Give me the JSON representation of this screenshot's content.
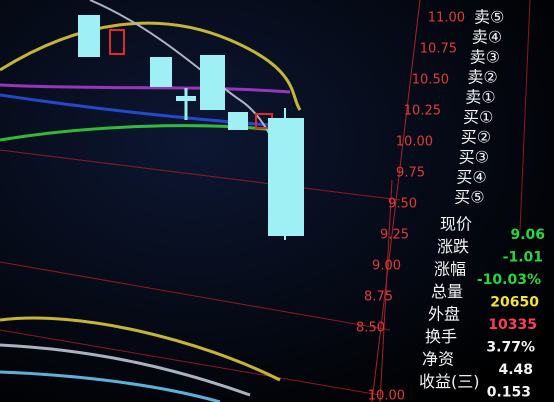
{
  "price_axis": [
    "11.00",
    "10.75",
    "10.50",
    "10.25",
    "10.00",
    "9.75",
    "9.50",
    "9.25",
    "9.00",
    "8.75",
    "8.50",
    "10.00"
  ],
  "order_book": [
    "卖⑤",
    "卖④",
    "卖③",
    "卖②",
    "卖①",
    "买①",
    "买②",
    "买③",
    "买④",
    "买⑤"
  ],
  "quote": [
    {
      "label": "现价",
      "value": "9.06",
      "color": "#27d83a"
    },
    {
      "label": "涨跌",
      "value": "-1.01",
      "color": "#27d83a"
    },
    {
      "label": "涨幅",
      "value": "-10.03%",
      "color": "#27d83a"
    },
    {
      "label": "总量",
      "value": "20650",
      "color": "#f0e43a"
    },
    {
      "label": "外盘",
      "value": "10335",
      "color": "#ff3b5c"
    },
    {
      "label": "换手",
      "value": "3.77%",
      "color": "#f2f2f2"
    },
    {
      "label": "净资",
      "value": "4.48",
      "color": "#f2f2f2"
    },
    {
      "label": "收益(三)",
      "value": "0.153",
      "color": "#f2f2f2"
    }
  ]
}
